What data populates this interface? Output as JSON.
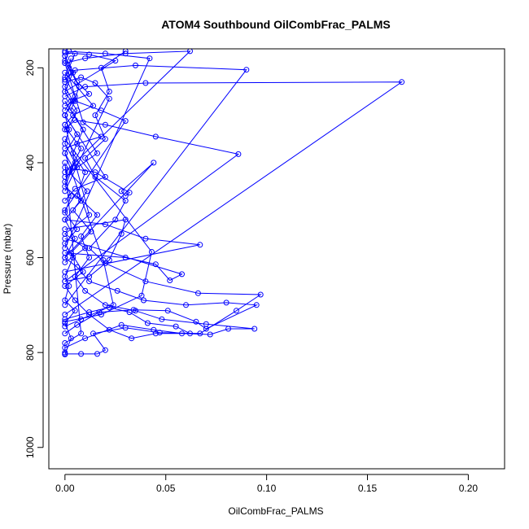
{
  "chart_data": {
    "type": "line",
    "title": "ATOM4 Southbound OilCombFrac_PALMS",
    "xlabel": "OilCombFrac_PALMS",
    "ylabel": "Pressure (mbar)",
    "xlim": [
      -0.008,
      0.218
    ],
    "ylim": [
      160,
      1045
    ],
    "y_reversed": true,
    "grid": false,
    "marker": "open-circle",
    "color": "#0000ff",
    "x_ticks": [
      {
        "value": 0,
        "label": "0.00"
      },
      {
        "value": 0.05,
        "label": "0.05"
      },
      {
        "value": 0.1,
        "label": "0.10"
      },
      {
        "value": 0.15,
        "label": "0.15"
      },
      {
        "value": 0.2,
        "label": "0.20"
      }
    ],
    "y_ticks": [
      {
        "value": 200,
        "label": "200"
      },
      {
        "value": 400,
        "label": "400"
      },
      {
        "value": 600,
        "label": "600"
      },
      {
        "value": 800,
        "label": "800"
      },
      {
        "value": 1000,
        "label": "1000"
      }
    ],
    "series": [
      {
        "points": [
          [
            0.0,
            804
          ],
          [
            0.003,
            770
          ],
          [
            0.0,
            738
          ],
          [
            0.005,
            712
          ],
          [
            0.0,
            690
          ],
          [
            0.002,
            660
          ],
          [
            0.0,
            640
          ],
          [
            0.004,
            600
          ],
          [
            0.0,
            570
          ],
          [
            0.006,
            540
          ],
          [
            0.0,
            505
          ],
          [
            0.003,
            470
          ],
          [
            0.0,
            440
          ],
          [
            0.005,
            400
          ],
          [
            0.0,
            360
          ],
          [
            0.002,
            330
          ],
          [
            0.0,
            300
          ],
          [
            0.004,
            270
          ],
          [
            0.0,
            240
          ],
          [
            0.003,
            210
          ],
          [
            0.0,
            185
          ],
          [
            0.002,
            165
          ]
        ]
      },
      {
        "points": [
          [
            0.0,
            803
          ],
          [
            0.008,
            803
          ],
          [
            0.016,
            803
          ],
          [
            0.02,
            795
          ],
          [
            0.014,
            760
          ],
          [
            0.03,
            748
          ],
          [
            0.047,
            758
          ],
          [
            0.067,
            760
          ],
          [
            0.085,
            712
          ],
          [
            0.097,
            678
          ],
          [
            0.066,
            675
          ],
          [
            0.04,
            650
          ],
          [
            0.02,
            612
          ],
          [
            0.012,
            580
          ],
          [
            0.025,
            520
          ],
          [
            0.03,
            480
          ],
          [
            0.015,
            430
          ],
          [
            0.01,
            390
          ],
          [
            0.02,
            350
          ],
          [
            0.015,
            300
          ],
          [
            0.022,
            250
          ],
          [
            0.018,
            200
          ],
          [
            0.03,
            165
          ]
        ]
      },
      {
        "points": [
          [
            0.0,
            790
          ],
          [
            0.01,
            770
          ],
          [
            0.028,
            742
          ],
          [
            0.044,
            752
          ],
          [
            0.058,
            760
          ],
          [
            0.072,
            762
          ],
          [
            0.081,
            750
          ],
          [
            0.094,
            750
          ],
          [
            0.07,
            740
          ],
          [
            0.048,
            730
          ],
          [
            0.035,
            712
          ],
          [
            0.02,
            700
          ],
          [
            0.01,
            670
          ],
          [
            0.005,
            640
          ],
          [
            0.012,
            600
          ],
          [
            0.008,
            555
          ],
          [
            0.016,
            510
          ],
          [
            0.006,
            470
          ],
          [
            0.01,
            420
          ],
          [
            0.004,
            380
          ],
          [
            0.009,
            330
          ],
          [
            0.003,
            290
          ],
          [
            0.007,
            240
          ],
          [
            0.002,
            200
          ],
          [
            0.005,
            170
          ]
        ]
      },
      {
        "points": [
          [
            0.0,
            760
          ],
          [
            0.006,
            742
          ],
          [
            0.017,
            715
          ],
          [
            0.034,
            710
          ],
          [
            0.051,
            712
          ],
          [
            0.065,
            735
          ],
          [
            0.07,
            750
          ],
          [
            0.095,
            700
          ],
          [
            0.08,
            695
          ],
          [
            0.06,
            700
          ],
          [
            0.039,
            690
          ],
          [
            0.026,
            670
          ],
          [
            0.012,
            650
          ],
          [
            0.006,
            620
          ],
          [
            0.0,
            600
          ],
          [
            0.005,
            560
          ],
          [
            0.0,
            520
          ],
          [
            0.008,
            480
          ],
          [
            0.0,
            450
          ],
          [
            0.004,
            410
          ],
          [
            0.0,
            380
          ],
          [
            0.006,
            340
          ],
          [
            0.0,
            300
          ],
          [
            0.005,
            260
          ],
          [
            0.0,
            220
          ],
          [
            0.003,
            180
          ]
        ]
      },
      {
        "points": [
          [
            0.0,
            730
          ],
          [
            0.012,
            715
          ],
          [
            0.022,
            705
          ],
          [
            0.032,
            715
          ],
          [
            0.041,
            738
          ],
          [
            0.055,
            745
          ],
          [
            0.062,
            760
          ],
          [
            0.045,
            760
          ],
          [
            0.033,
            770
          ],
          [
            0.022,
            752
          ],
          [
            0.012,
            720
          ],
          [
            0.005,
            690
          ],
          [
            0.0,
            660
          ],
          [
            0.009,
            630
          ],
          [
            0.003,
            590
          ],
          [
            0.013,
            545
          ],
          [
            0.004,
            500
          ],
          [
            0.011,
            460
          ],
          [
            0.002,
            420
          ],
          [
            0.008,
            370
          ],
          [
            0.001,
            330
          ],
          [
            0.006,
            290
          ],
          [
            0.0,
            250
          ],
          [
            0.004,
            210
          ],
          [
            0.0,
            175
          ]
        ]
      },
      {
        "points": [
          [
            0.0,
            720
          ],
          [
            0.167,
            230
          ],
          [
            0.04,
            232
          ],
          [
            0.01,
            240
          ],
          [
            0.0,
            260
          ]
        ]
      },
      {
        "points": [
          [
            0.0,
            700
          ],
          [
            0.09,
            204
          ],
          [
            0.035,
            195
          ],
          [
            0.005,
            205
          ],
          [
            0.0,
            225
          ]
        ]
      },
      {
        "points": [
          [
            0.0,
            650
          ],
          [
            0.086,
            382
          ],
          [
            0.045,
            345
          ],
          [
            0.02,
            320
          ],
          [
            0.005,
            310
          ],
          [
            0.0,
            330
          ]
        ]
      },
      {
        "points": [
          [
            0.0,
            630
          ],
          [
            0.067,
            573
          ],
          [
            0.04,
            560
          ],
          [
            0.02,
            530
          ],
          [
            0.0,
            520
          ]
        ]
      },
      {
        "points": [
          [
            0.0,
            600
          ],
          [
            0.044,
            400
          ],
          [
            0.028,
            460
          ],
          [
            0.03,
            470
          ],
          [
            0.032,
            463
          ],
          [
            0.015,
            420
          ],
          [
            0.0,
            410
          ]
        ]
      },
      {
        "points": [
          [
            0.0,
            580
          ],
          [
            0.042,
            180
          ],
          [
            0.02,
            170
          ],
          [
            0.0,
            165
          ]
        ]
      },
      {
        "points": [
          [
            0.0,
            560
          ],
          [
            0.058,
            635
          ],
          [
            0.052,
            648
          ],
          [
            0.045,
            614
          ],
          [
            0.03,
            600
          ],
          [
            0.0,
            590
          ]
        ]
      },
      {
        "points": [
          [
            0.0,
            540
          ],
          [
            0.03,
            520
          ],
          [
            0.028,
            550
          ],
          [
            0.022,
            605
          ],
          [
            0.012,
            640
          ],
          [
            0.0,
            650
          ]
        ]
      },
      {
        "points": [
          [
            0.0,
            500
          ],
          [
            0.03,
            312
          ],
          [
            0.018,
            290
          ],
          [
            0.005,
            270
          ],
          [
            0.0,
            280
          ]
        ]
      },
      {
        "points": [
          [
            0.0,
            460
          ],
          [
            0.022,
            265
          ],
          [
            0.015,
            232
          ],
          [
            0.008,
            220
          ],
          [
            0.0,
            230
          ]
        ]
      },
      {
        "points": [
          [
            0.0,
            420
          ],
          [
            0.062,
            165
          ],
          [
            0.03,
            170
          ],
          [
            0.01,
            180
          ],
          [
            0.0,
            190
          ]
        ]
      },
      {
        "points": [
          [
            0.0,
            400
          ],
          [
            0.008,
            760
          ],
          [
            0.0,
            780
          ],
          [
            0.0,
            800
          ]
        ]
      },
      {
        "points": [
          [
            0.0,
            380
          ],
          [
            0.019,
            605
          ],
          [
            0.024,
            700
          ],
          [
            0.008,
            730
          ],
          [
            0.0,
            745
          ]
        ]
      },
      {
        "points": [
          [
            0.0,
            350
          ],
          [
            0.043,
            588
          ],
          [
            0.038,
            680
          ],
          [
            0.018,
            720
          ],
          [
            0.0,
            735
          ]
        ]
      },
      {
        "points": [
          [
            0.0,
            320
          ],
          [
            0.012,
            510
          ],
          [
            0.0,
            550
          ],
          [
            0.01,
            580
          ],
          [
            0.0,
            610
          ]
        ]
      },
      {
        "points": [
          [
            0.0,
            300
          ],
          [
            0.02,
            430
          ],
          [
            0.005,
            455
          ],
          [
            0.0,
            480
          ]
        ]
      },
      {
        "points": [
          [
            0.0,
            270
          ],
          [
            0.016,
            380
          ],
          [
            0.006,
            410
          ],
          [
            0.0,
            430
          ]
        ]
      },
      {
        "points": [
          [
            0.0,
            250
          ],
          [
            0.025,
            185
          ],
          [
            0.012,
            172
          ],
          [
            0.0,
            168
          ]
        ]
      },
      {
        "points": [
          [
            0.0,
            210
          ],
          [
            0.014,
            280
          ],
          [
            0.004,
            300
          ],
          [
            0.0,
            320
          ]
        ]
      },
      {
        "points": [
          [
            0.0,
            190
          ],
          [
            0.009,
            315
          ],
          [
            0.018,
            345
          ],
          [
            0.006,
            360
          ],
          [
            0.0,
            370
          ]
        ]
      },
      {
        "points": [
          [
            0.0,
            175
          ],
          [
            0.006,
            230
          ],
          [
            0.012,
            255
          ],
          [
            0.003,
            270
          ],
          [
            0.0,
            290
          ]
        ]
      }
    ]
  }
}
